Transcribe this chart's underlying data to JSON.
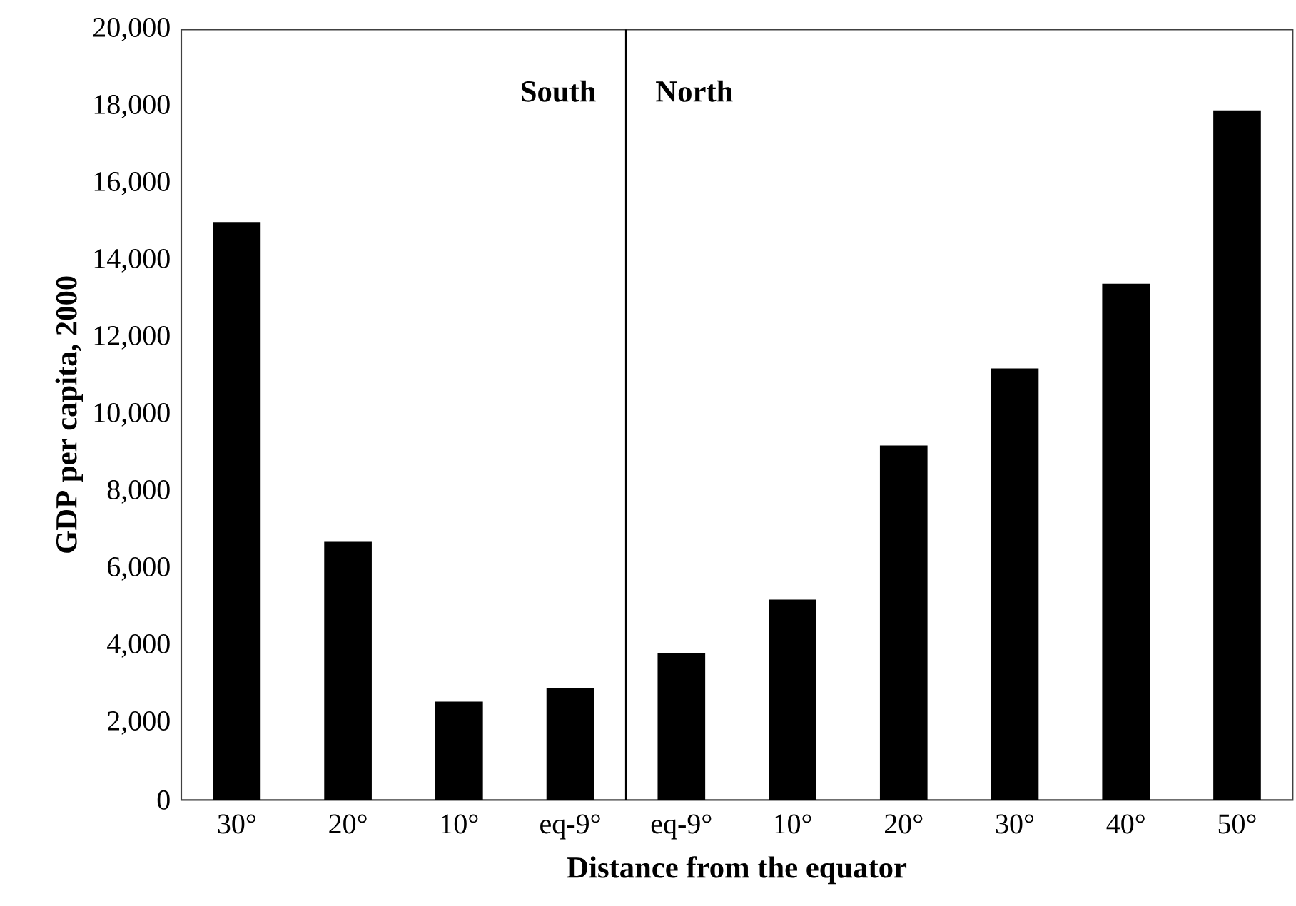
{
  "chart_data": {
    "type": "bar",
    "xlabel": "Distance from the equator",
    "ylabel": "GDP per capita, 2000",
    "categories": [
      "30°",
      "20°",
      "10°",
      "eq-9°",
      "eq-9°",
      "10°",
      "20°",
      "30°",
      "40°",
      "50°"
    ],
    "values": [
      15000,
      6700,
      2550,
      2900,
      3800,
      5200,
      9200,
      11200,
      13400,
      17900
    ],
    "color": "#000000",
    "ylim": [
      0,
      20000
    ],
    "yticks": [
      {
        "value": 0,
        "label": "0"
      },
      {
        "value": 2000,
        "label": "2,000"
      },
      {
        "value": 4000,
        "label": "4,000"
      },
      {
        "value": 6000,
        "label": "6,000"
      },
      {
        "value": 8000,
        "label": "8,000"
      },
      {
        "value": 10000,
        "label": "10,000"
      },
      {
        "value": 12000,
        "label": "12,000"
      },
      {
        "value": 14000,
        "label": "14,000"
      },
      {
        "value": 16000,
        "label": "16,000"
      },
      {
        "value": 18000,
        "label": "18,000"
      },
      {
        "value": 20000,
        "label": "20,000"
      }
    ],
    "annotations": [
      "South",
      "North"
    ],
    "grid": false
  }
}
